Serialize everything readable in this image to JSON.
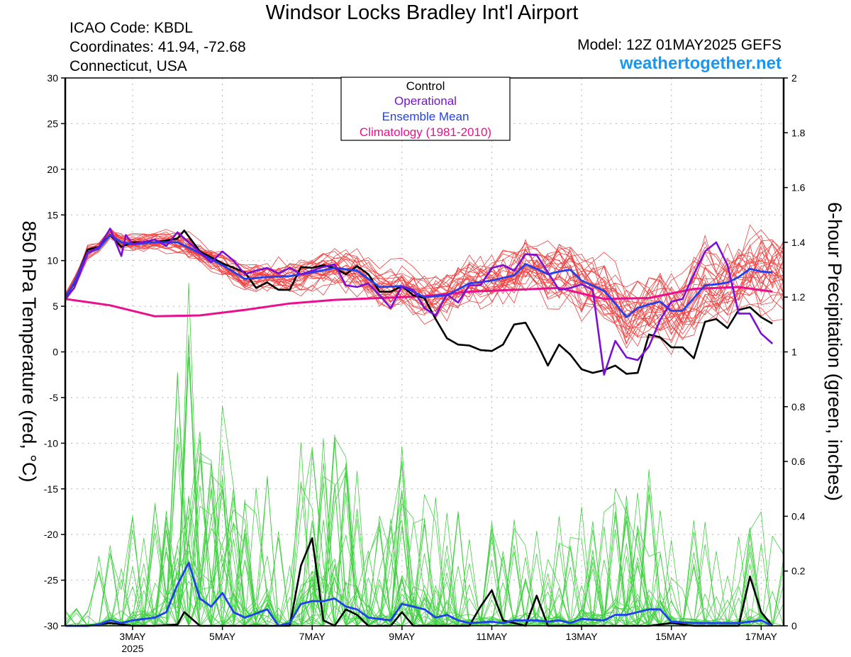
{
  "header": {
    "title": "Windsor Locks Bradley Int'l Airport",
    "icao": "ICAO Code: KBDL",
    "coordinates": "Coordinates: 41.94, -72.68",
    "region": "Connecticut, USA",
    "model": "Model: 12Z 01MAY2025 GEFS",
    "site": "weathertogether.net"
  },
  "colors": {
    "members_temp": "#f04040",
    "members_precip": "#40d040",
    "control": "#000000",
    "operational": "#7a10d8",
    "ensemble_mean": "#2040f0",
    "climatology": "#e8108c",
    "site": "#1a96f0"
  },
  "chart_data": {
    "type": "line",
    "title": "Windsor Locks Bradley Int'l Airport",
    "ylabel": "850 hPa Temperature (red, °C)",
    "y2label": "6-hour Precipitation (green, inches)",
    "ylim": [
      -30,
      30
    ],
    "y2lim": [
      0,
      2
    ],
    "yticks": [
      -30,
      -25,
      -20,
      -15,
      -10,
      -5,
      0,
      5,
      10,
      15,
      20,
      25,
      30
    ],
    "y2ticks": [
      "0",
      "0.2",
      "0.4",
      "0.6",
      "0.8",
      "1",
      "1.2",
      "1.4",
      "1.6",
      "1.8",
      "2"
    ],
    "xlim": [
      1.5,
      17.5
    ],
    "x_unit": "day of May 2025",
    "xticks": [
      {
        "x": 3,
        "label": "3MAY",
        "sub": "2025"
      },
      {
        "x": 5,
        "label": "5MAY",
        "sub": ""
      },
      {
        "x": 7,
        "label": "7MAY",
        "sub": ""
      },
      {
        "x": 9,
        "label": "9MAY",
        "sub": ""
      },
      {
        "x": 11,
        "label": "11MAY",
        "sub": ""
      },
      {
        "x": 13,
        "label": "13MAY",
        "sub": ""
      },
      {
        "x": 15,
        "label": "15MAY",
        "sub": ""
      },
      {
        "x": 17,
        "label": "17MAY",
        "sub": ""
      }
    ],
    "grid": true,
    "legend": {
      "position": "top-center",
      "entries": [
        "Control",
        "Operational",
        "Ensemble Mean",
        "Climatology (1981-2010)"
      ]
    },
    "temperature": {
      "control": [
        [
          1.5,
          6
        ],
        [
          1.7,
          7.5
        ],
        [
          2,
          11.2
        ],
        [
          2.25,
          11.5
        ],
        [
          2.5,
          12.8
        ],
        [
          2.75,
          11.5
        ],
        [
          3,
          12
        ],
        [
          3.5,
          12
        ],
        [
          4,
          12.4
        ],
        [
          4.15,
          13.3
        ],
        [
          4.5,
          11
        ],
        [
          5,
          9.7
        ],
        [
          5.5,
          8.7
        ],
        [
          5.75,
          7
        ],
        [
          6,
          7.6
        ],
        [
          6.25,
          6.8
        ],
        [
          6.5,
          6.8
        ],
        [
          6.75,
          9.3
        ],
        [
          7,
          9.2
        ],
        [
          7.25,
          9.5
        ],
        [
          7.5,
          9.2
        ],
        [
          7.75,
          8.5
        ],
        [
          8,
          9.4
        ],
        [
          8.25,
          8.5
        ],
        [
          8.5,
          6.6
        ],
        [
          8.75,
          6.6
        ],
        [
          9,
          7.2
        ],
        [
          9.25,
          6.2
        ],
        [
          9.5,
          5.9
        ],
        [
          9.75,
          3.6
        ],
        [
          10,
          1.5
        ],
        [
          10.25,
          0.8
        ],
        [
          10.5,
          0.7
        ],
        [
          10.75,
          0.2
        ],
        [
          11,
          0.1
        ],
        [
          11.25,
          0.8
        ],
        [
          11.5,
          3
        ],
        [
          11.75,
          3.2
        ],
        [
          12,
          1
        ],
        [
          12.25,
          -1.5
        ],
        [
          12.5,
          0.8
        ],
        [
          12.75,
          -0.3
        ],
        [
          13,
          -1.9
        ],
        [
          13.25,
          -2.3
        ],
        [
          13.5,
          -2
        ],
        [
          13.75,
          -1.5
        ],
        [
          14,
          -2.4
        ],
        [
          14.25,
          -2.3
        ],
        [
          14.5,
          1.9
        ],
        [
          14.75,
          1.6
        ],
        [
          15,
          0.5
        ],
        [
          15.25,
          0.5
        ],
        [
          15.5,
          -0.7
        ],
        [
          15.75,
          3.3
        ],
        [
          16,
          3.6
        ],
        [
          16.25,
          2.6
        ],
        [
          16.5,
          4.6
        ],
        [
          16.75,
          4.9
        ],
        [
          17,
          3.8
        ],
        [
          17.25,
          3.1
        ]
      ],
      "operational": [
        [
          1.5,
          5.8
        ],
        [
          1.7,
          7
        ],
        [
          2,
          10.8
        ],
        [
          2.25,
          11.5
        ],
        [
          2.5,
          13.5
        ],
        [
          2.75,
          10.5
        ],
        [
          2.85,
          12.8
        ],
        [
          3,
          11.8
        ],
        [
          3.5,
          12.3
        ],
        [
          3.75,
          11.6
        ],
        [
          4,
          13.1
        ],
        [
          4.25,
          12
        ],
        [
          4.5,
          10.9
        ],
        [
          4.75,
          9.8
        ],
        [
          5,
          11
        ],
        [
          5.25,
          10
        ],
        [
          5.5,
          8.5
        ],
        [
          5.75,
          8.9
        ],
        [
          6,
          9.2
        ],
        [
          6.25,
          8.6
        ],
        [
          6.5,
          9.2
        ],
        [
          6.75,
          8.5
        ],
        [
          7,
          8.9
        ],
        [
          7.25,
          9.3
        ],
        [
          7.5,
          9.6
        ],
        [
          7.75,
          7.3
        ],
        [
          8,
          7.1
        ],
        [
          8.25,
          7.5
        ],
        [
          8.5,
          6.2
        ],
        [
          8.75,
          4.8
        ],
        [
          9,
          7.2
        ],
        [
          9.25,
          6.8
        ],
        [
          9.5,
          4.8
        ],
        [
          9.75,
          4
        ],
        [
          10,
          6.3
        ],
        [
          10.25,
          5.4
        ],
        [
          10.5,
          7.3
        ],
        [
          10.75,
          7.3
        ],
        [
          11,
          9.2
        ],
        [
          11.25,
          9.5
        ],
        [
          11.5,
          8.9
        ],
        [
          11.75,
          10.7
        ],
        [
          12,
          10.6
        ],
        [
          12.25,
          8.7
        ],
        [
          12.5,
          6.8
        ],
        [
          12.75,
          7
        ],
        [
          13,
          7.4
        ],
        [
          13.25,
          6.8
        ],
        [
          13.5,
          -2.5
        ],
        [
          13.75,
          1.2
        ],
        [
          14,
          -0.6
        ],
        [
          14.25,
          -0.9
        ],
        [
          14.5,
          0.6
        ],
        [
          14.75,
          3.5
        ],
        [
          15,
          5.5
        ],
        [
          15.25,
          5.8
        ],
        [
          15.5,
          8.5
        ],
        [
          15.75,
          11
        ],
        [
          16,
          12
        ],
        [
          16.25,
          9.5
        ],
        [
          16.5,
          4.2
        ],
        [
          16.75,
          4.2
        ],
        [
          17,
          2
        ],
        [
          17.25,
          0.9
        ]
      ],
      "ensemble_mean": [
        [
          1.5,
          5.9
        ],
        [
          1.7,
          7.6
        ],
        [
          2,
          10.9
        ],
        [
          2.25,
          11.3
        ],
        [
          2.5,
          12.8
        ],
        [
          2.75,
          12
        ],
        [
          3,
          11.8
        ],
        [
          3.5,
          12
        ],
        [
          4,
          12
        ],
        [
          4.5,
          10.8
        ],
        [
          5,
          9.5
        ],
        [
          5.5,
          8
        ],
        [
          6,
          8.2
        ],
        [
          6.5,
          8.3
        ],
        [
          7,
          8.7
        ],
        [
          7.5,
          9.2
        ],
        [
          8,
          8.9
        ],
        [
          8.5,
          7.1
        ],
        [
          9,
          7.2
        ],
        [
          9.5,
          6
        ],
        [
          10,
          6.2
        ],
        [
          10.5,
          7.5
        ],
        [
          11,
          7.8
        ],
        [
          11.5,
          8.4
        ],
        [
          11.75,
          9.6
        ],
        [
          12,
          9.1
        ],
        [
          12.25,
          8.5
        ],
        [
          12.5,
          8.8
        ],
        [
          12.75,
          9
        ],
        [
          13,
          7.8
        ],
        [
          13.5,
          6.7
        ],
        [
          13.75,
          5.3
        ],
        [
          14,
          3.8
        ],
        [
          14.25,
          4.8
        ],
        [
          14.5,
          5.2
        ],
        [
          14.75,
          5.5
        ],
        [
          15,
          4.5
        ],
        [
          15.25,
          4.5
        ],
        [
          15.5,
          5.9
        ],
        [
          15.75,
          7.3
        ],
        [
          16,
          7.4
        ],
        [
          16.25,
          7.6
        ],
        [
          16.5,
          8.2
        ],
        [
          16.75,
          9.1
        ],
        [
          17,
          8.8
        ],
        [
          17.25,
          8.7
        ]
      ],
      "climatology": [
        [
          1.5,
          5.8
        ],
        [
          2.5,
          5.1
        ],
        [
          3.5,
          3.9
        ],
        [
          4.5,
          4
        ],
        [
          5.5,
          4.6
        ],
        [
          6.5,
          5.3
        ],
        [
          7.5,
          5.7
        ],
        [
          8.5,
          5.9
        ],
        [
          9.5,
          6.1
        ],
        [
          10.5,
          6.6
        ],
        [
          11.5,
          6.8
        ],
        [
          12.5,
          7
        ],
        [
          13.5,
          5.8
        ],
        [
          14.5,
          5.9
        ],
        [
          15.5,
          6.9
        ],
        [
          16.5,
          7.1
        ],
        [
          17.25,
          6.6
        ]
      ]
    },
    "precipitation": {
      "control": [
        [
          1.5,
          0
        ],
        [
          2,
          0
        ],
        [
          2.5,
          0.01
        ],
        [
          3,
          0
        ],
        [
          3.5,
          0
        ],
        [
          4,
          0.005
        ],
        [
          4.15,
          0.05
        ],
        [
          4.5,
          0
        ],
        [
          5,
          0
        ],
        [
          5.5,
          0
        ],
        [
          6,
          0
        ],
        [
          6.5,
          0
        ],
        [
          6.75,
          0.22
        ],
        [
          7,
          0.32
        ],
        [
          7.25,
          0.02
        ],
        [
          7.5,
          0
        ],
        [
          7.75,
          0.06
        ],
        [
          8,
          0.04
        ],
        [
          8.25,
          0
        ],
        [
          8.75,
          0
        ],
        [
          9,
          0.05
        ],
        [
          9.25,
          0
        ],
        [
          9.75,
          0
        ],
        [
          10,
          0
        ],
        [
          10.5,
          0
        ],
        [
          10.75,
          0.07
        ],
        [
          11,
          0.13
        ],
        [
          11.25,
          0.02
        ],
        [
          11.75,
          0
        ],
        [
          12,
          0.11
        ],
        [
          12.25,
          0
        ],
        [
          12.75,
          0
        ],
        [
          13,
          0
        ],
        [
          13.5,
          0
        ],
        [
          14,
          0
        ],
        [
          14.5,
          0
        ],
        [
          15,
          0.01
        ],
        [
          15.5,
          0
        ],
        [
          16,
          0
        ],
        [
          16.5,
          0
        ],
        [
          16.75,
          0.18
        ],
        [
          17,
          0.05
        ],
        [
          17.25,
          0
        ]
      ],
      "ensemble_mean": [
        [
          1.5,
          0
        ],
        [
          2,
          0
        ],
        [
          2.25,
          0.005
        ],
        [
          2.5,
          0.02
        ],
        [
          2.75,
          0.01
        ],
        [
          3,
          0.02
        ],
        [
          3.5,
          0.03
        ],
        [
          3.75,
          0.05
        ],
        [
          4,
          0.15
        ],
        [
          4.25,
          0.23
        ],
        [
          4.5,
          0.1
        ],
        [
          4.75,
          0.07
        ],
        [
          5,
          0.12
        ],
        [
          5.25,
          0.05
        ],
        [
          5.5,
          0.03
        ],
        [
          6,
          0.06
        ],
        [
          6.25,
          0
        ],
        [
          6.5,
          0.01
        ],
        [
          6.75,
          0.08
        ],
        [
          7,
          0.09
        ],
        [
          7.25,
          0.09
        ],
        [
          7.5,
          0.1
        ],
        [
          7.75,
          0.07
        ],
        [
          8,
          0.06
        ],
        [
          8.25,
          0.03
        ],
        [
          8.5,
          0.025
        ],
        [
          8.75,
          0.02
        ],
        [
          9,
          0.08
        ],
        [
          9.25,
          0.07
        ],
        [
          9.5,
          0.06
        ],
        [
          9.75,
          0.03
        ],
        [
          10,
          0.04
        ],
        [
          10.25,
          0.02
        ],
        [
          10.5,
          0.01
        ],
        [
          11,
          0.015
        ],
        [
          11.25,
          0.01
        ],
        [
          11.5,
          0.02
        ],
        [
          12,
          0.02
        ],
        [
          12.25,
          0.015
        ],
        [
          12.5,
          0.02
        ],
        [
          12.75,
          0.01
        ],
        [
          13,
          0.025
        ],
        [
          13.5,
          0.02
        ],
        [
          13.75,
          0.04
        ],
        [
          14,
          0.04
        ],
        [
          14.25,
          0.05
        ],
        [
          14.5,
          0.06
        ],
        [
          14.75,
          0.06
        ],
        [
          15,
          0.015
        ],
        [
          15.5,
          0.01
        ],
        [
          16,
          0.01
        ],
        [
          16.5,
          0.01
        ],
        [
          16.75,
          0.015
        ],
        [
          17,
          0.02
        ],
        [
          17.25,
          0
        ]
      ]
    }
  }
}
